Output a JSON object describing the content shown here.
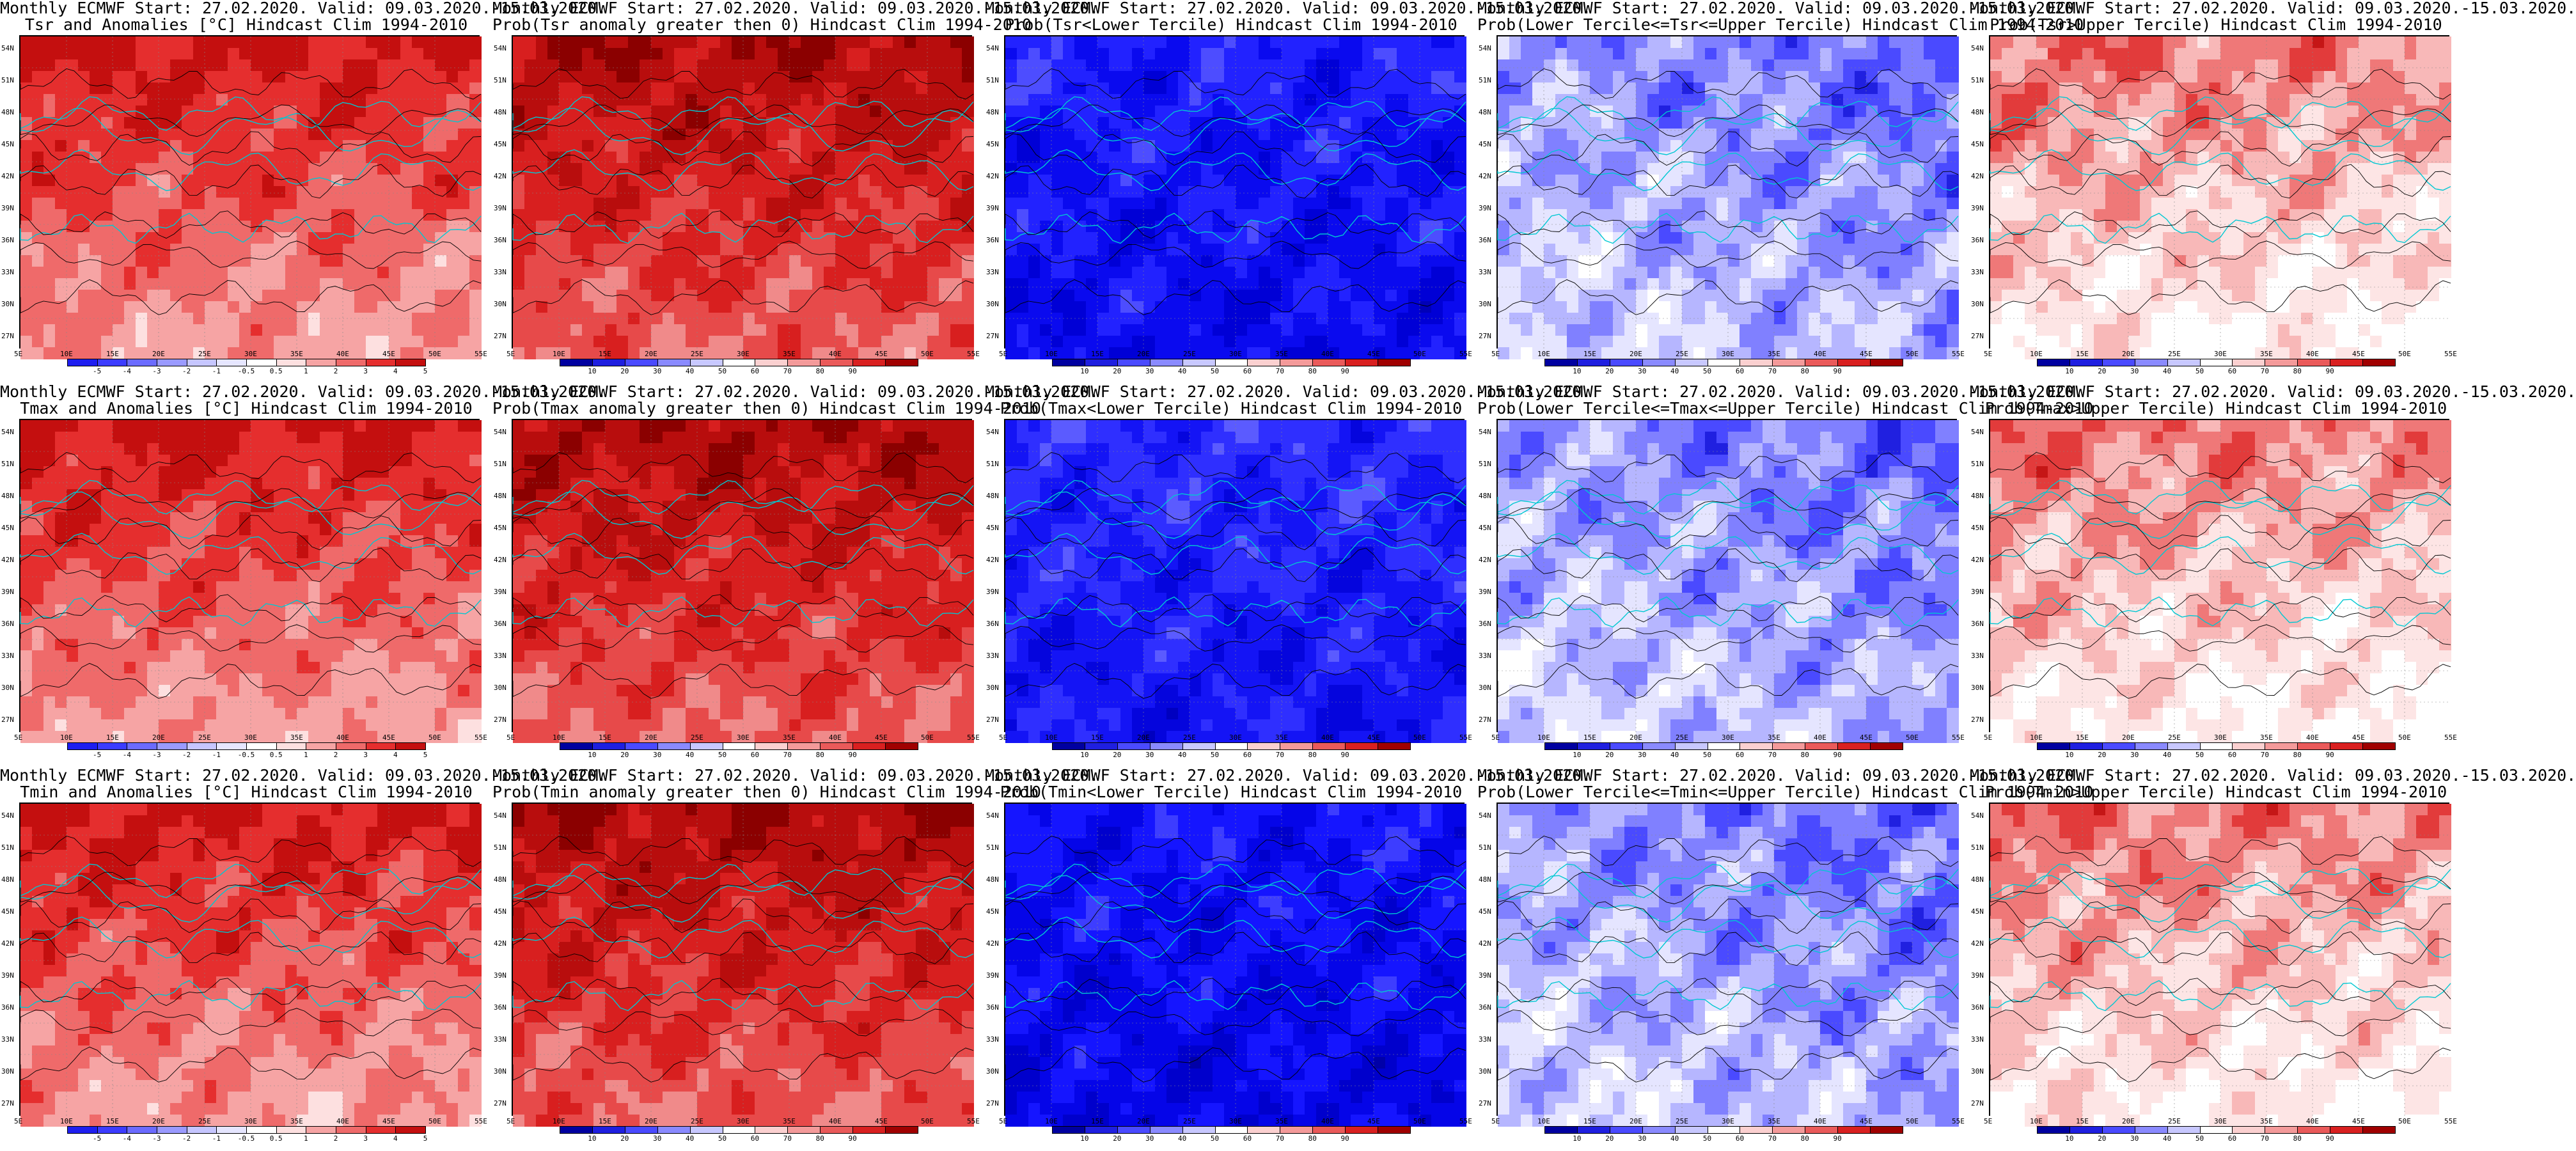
{
  "panels": [
    {
      "title_l1": "Monthly ECMWF Start: 27.02.2020. Valid: 09.03.2020.-15.03.2020.",
      "title_l2": "Tsr and Anomalies [°C] Hindcast Clim 1994-2010",
      "scheme": "anom",
      "palette": [
        "#ffffff",
        "#fde0e0",
        "#f6a4a4",
        "#ef6a6a",
        "#e52e2e",
        "#c40f0f"
      ]
    },
    {
      "title_l1": "Monthly ECMWF Start: 27.02.2020. Valid: 09.03.2020.-15.03.2020.",
      "title_l2": "Prob(Tsr anomaly greater then 0) Hindcast Clim 1994-2010",
      "scheme": "prob_hi",
      "palette": [
        "#f9c1c1",
        "#f08a8a",
        "#e74a4a",
        "#d81f1f",
        "#b80d0d",
        "#8b0000"
      ]
    },
    {
      "title_l1": "Monthly ECMWF Start: 27.02.2020. Valid: 09.03.2020.-15.03.2020.",
      "title_l2": "Prob(Tsr<Lower Tercile) Hindcast Clim 1994-2010",
      "scheme": "prob_lo",
      "palette": [
        "#7b7bff",
        "#4d4dff",
        "#2222ff",
        "#0a0aef",
        "#0000d6",
        "#0000b8"
      ]
    },
    {
      "title_l1": "Monthly ECMWF Start: 27.02.2020. Valid: 09.03.2020.-15.03.2020.",
      "title_l2": "Prob(Lower Tercile<=Tsr<=Upper Tercile) Hindcast Clim 1994-2010",
      "scheme": "mid",
      "palette": [
        "#ffffff",
        "#e5e5ff",
        "#b6b6ff",
        "#8080ff",
        "#4a4aff",
        "#2020e0"
      ]
    },
    {
      "title_l1": "Monthly ECMWF Start: 27.02.2020. Valid: 09.03.2020.-15.03.2020.",
      "title_l2": "Prob(Tsr>Upper Tercile) Hindcast Clim 1994-2010",
      "scheme": "up",
      "palette": [
        "#ffffff",
        "#fde5e5",
        "#f8b8b8",
        "#ef7878",
        "#e23b3b",
        "#c51616"
      ]
    },
    {
      "title_l1": "Monthly ECMWF Start: 27.02.2020. Valid: 09.03.2020.-15.03.2020.",
      "title_l2": "Tmax and Anomalies [°C] Hindcast Clim 1994-2010",
      "scheme": "anom",
      "palette": [
        "#ffffff",
        "#fde0e0",
        "#f6a4a4",
        "#ef6a6a",
        "#e52e2e",
        "#c40f0f"
      ]
    },
    {
      "title_l1": "Monthly ECMWF Start: 27.02.2020. Valid: 09.03.2020.-15.03.2020.",
      "title_l2": "Prob(Tmax anomaly greater then 0) Hindcast Clim 1994-2010",
      "scheme": "prob_hi",
      "palette": [
        "#f9c1c1",
        "#f08a8a",
        "#e74a4a",
        "#d81f1f",
        "#b80d0d",
        "#8b0000"
      ]
    },
    {
      "title_l1": "Monthly ECMWF Start: 27.02.2020. Valid: 09.03.2020.-15.03.2020.",
      "title_l2": "Prob(Tmax<Lower Tercile) Hindcast Clim 1994-2010",
      "scheme": "prob_lo",
      "palette": [
        "#8e8eff",
        "#5b5bff",
        "#2f2fff",
        "#1414f5",
        "#0505dd",
        "#0000c0"
      ]
    },
    {
      "title_l1": "Monthly ECMWF Start: 27.02.2020. Valid: 09.03.2020.-15.03.2020.",
      "title_l2": "Prob(Lower Tercile<=Tmax<=Upper Tercile) Hindcast Clim 1994-2010",
      "scheme": "mid",
      "palette": [
        "#ffffff",
        "#e5e5ff",
        "#b6b6ff",
        "#8080ff",
        "#4a4aff",
        "#2020e0"
      ]
    },
    {
      "title_l1": "Monthly ECMWF Start: 27.02.2020. Valid: 09.03.2020.-15.03.2020.",
      "title_l2": "Prob(Tmax>Upper Tercile) Hindcast Clim 1994-2010",
      "scheme": "up",
      "palette": [
        "#ffffff",
        "#fde5e5",
        "#f8b8b8",
        "#ef7878",
        "#e23b3b",
        "#c51616"
      ]
    },
    {
      "title_l1": "Monthly ECMWF Start: 27.02.2020. Valid: 09.03.2020.-15.03.2020.",
      "title_l2": "Tmin and Anomalies [°C] Hindcast Clim 1994-2010",
      "scheme": "anom",
      "palette": [
        "#ffffff",
        "#fde0e0",
        "#f6a4a4",
        "#ef6a6a",
        "#e52e2e",
        "#c40f0f"
      ]
    },
    {
      "title_l1": "Monthly ECMWF Start: 27.02.2020. Valid: 09.03.2020.-15.03.2020.",
      "title_l2": "Prob(Tmin anomaly greater then 0) Hindcast Clim 1994-2010",
      "scheme": "prob_hi",
      "palette": [
        "#f9c1c1",
        "#f08a8a",
        "#e74a4a",
        "#d81f1f",
        "#b80d0d",
        "#8b0000"
      ]
    },
    {
      "title_l1": "Monthly ECMWF Start: 27.02.2020. Valid: 09.03.2020.-15.03.2020.",
      "title_l2": "Prob(Tmin<Lower Tercile) Hindcast Clim 1994-2010",
      "scheme": "prob_lo",
      "palette": [
        "#6a6aff",
        "#3d3dff",
        "#1515ff",
        "#0505e8",
        "#0000cc",
        "#0000a8"
      ]
    },
    {
      "title_l1": "Monthly ECMWF Start: 27.02.2020. Valid: 09.03.2020.-15.03.2020.",
      "title_l2": "Prob(Lower Tercile<=Tmin<=Upper Tercile) Hindcast Clim 1994-2010",
      "scheme": "mid",
      "palette": [
        "#ffffff",
        "#e5e5ff",
        "#b6b6ff",
        "#8080ff",
        "#4a4aff",
        "#2020e0"
      ]
    },
    {
      "title_l1": "Monthly ECMWF Start: 27.02.2020. Valid: 09.03.2020.-15.03.2020.",
      "title_l2": "Prob(Tmin>Upper Tercile) Hindcast Clim 1994-2010",
      "scheme": "up",
      "palette": [
        "#ffffff",
        "#fde5e5",
        "#f8b8b8",
        "#ef7878",
        "#e23b3b",
        "#c51616"
      ]
    }
  ],
  "lat_labels": [
    "54N",
    "51N",
    "48N",
    "45N",
    "42N",
    "39N",
    "36N",
    "33N",
    "30N",
    "27N"
  ],
  "lon_labels": [
    "5E",
    "10E",
    "15E",
    "20E",
    "25E",
    "30E",
    "35E",
    "40E",
    "45E",
    "50E",
    "55E"
  ],
  "colorbars": {
    "anom": {
      "colors": [
        "#1e1ef0",
        "#3c3cff",
        "#6b6bff",
        "#9a9aff",
        "#c6c6ff",
        "#e6e6ff",
        "#ffffff",
        "#fde0e0",
        "#f6a4a4",
        "#ef6a6a",
        "#e52e2e",
        "#c40f0f"
      ],
      "ticks": [
        "-5",
        "-4",
        "-3",
        "-2",
        "-1",
        "-0.5",
        "0.5",
        "1",
        "2",
        "3",
        "4",
        "5"
      ]
    },
    "prob": {
      "colors": [
        "#0000a0",
        "#1f1fe0",
        "#4a4aff",
        "#8a8aff",
        "#c8c8ff",
        "#ffffff",
        "#fbd0d0",
        "#f49a9a",
        "#ea5a5a",
        "#d92020",
        "#a00000"
      ],
      "ticks": [
        "10",
        "20",
        "30",
        "40",
        "50",
        "60",
        "70",
        "80",
        "90"
      ]
    }
  },
  "colors": {
    "contour": "#000000",
    "coast": "#00c8d2",
    "border": "#2fb4c8",
    "grid": "#888888"
  }
}
